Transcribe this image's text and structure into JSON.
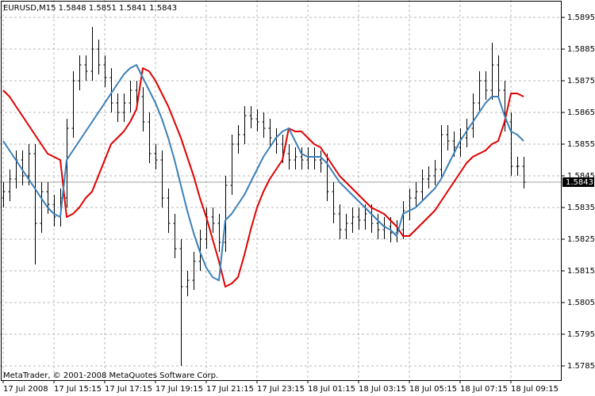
{
  "chart_data": {
    "type": "ohlc",
    "title": "EURUSD,M15  1.5848 1.5851 1.5841 1.5843",
    "annotation": "MetaTrader, © 2001-2008 MetaQuotes Software Corp.",
    "current_price": 1.5843,
    "bar_color": "#000000",
    "grid": true,
    "ylim": [
      1.57805,
      1.59005
    ],
    "yticks": [
      1.5785,
      1.5795,
      1.5805,
      1.5815,
      1.5825,
      1.5835,
      1.5845,
      1.5855,
      1.5865,
      1.5875,
      1.5885,
      1.5895
    ],
    "categories": [
      "17 Jul 2008",
      null,
      null,
      null,
      null,
      null,
      null,
      null,
      "17 Jul 15:15",
      null,
      null,
      null,
      null,
      null,
      null,
      null,
      "17 Jul 17:15",
      null,
      null,
      null,
      null,
      null,
      null,
      null,
      "17 Jul 19:15",
      null,
      null,
      null,
      null,
      null,
      null,
      null,
      "17 Jul 21:15",
      null,
      null,
      null,
      null,
      null,
      null,
      null,
      "17 Jul 23:15",
      null,
      null,
      null,
      null,
      null,
      null,
      null,
      "18 Jul 01:15",
      null,
      null,
      null,
      null,
      null,
      null,
      null,
      "18 Jul 03:15",
      null,
      null,
      null,
      null,
      null,
      null,
      null,
      "18 Jul 05:15",
      null,
      null,
      null,
      null,
      null,
      null,
      null,
      "18 Jul 07:15",
      null,
      null,
      null,
      null,
      null,
      null,
      null,
      "18 Jul 09:15",
      null,
      null
    ],
    "open": [
      1.5838,
      1.584,
      1.5844,
      1.585,
      1.5845,
      1.5852,
      1.583,
      1.584,
      1.5836,
      1.5832,
      1.5838,
      1.586,
      1.5875,
      1.588,
      1.5878,
      1.5885,
      1.588,
      1.5876,
      1.5868,
      1.5865,
      1.5868,
      1.5872,
      1.587,
      1.5862,
      1.5852,
      1.585,
      1.5838,
      1.583,
      1.5822,
      1.581,
      1.5812,
      1.5818,
      1.5825,
      1.5832,
      1.583,
      1.5824,
      1.5842,
      1.5855,
      1.5858,
      1.5864,
      1.5863,
      1.5862,
      1.586,
      1.5857,
      1.5855,
      1.5852,
      1.585,
      1.5851,
      1.585,
      1.5851,
      1.585,
      1.5849,
      1.584,
      1.5833,
      1.5828,
      1.583,
      1.5832,
      1.5831,
      1.5833,
      1.583,
      1.5828,
      1.5829,
      1.5827,
      1.5828,
      1.5834,
      1.5838,
      1.584,
      1.5844,
      1.5845,
      1.5847,
      1.5858,
      1.5856,
      1.5854,
      1.5857,
      1.586,
      1.5868,
      1.5875,
      1.5872,
      1.588,
      1.5872,
      1.5862,
      1.5848,
      1.5848
    ],
    "high": [
      1.5843,
      1.5847,
      1.5853,
      1.5853,
      1.5855,
      1.5855,
      1.5843,
      1.5843,
      1.5839,
      1.5841,
      1.5863,
      1.5878,
      1.5883,
      1.5883,
      1.5892,
      1.5888,
      1.5883,
      1.5879,
      1.5871,
      1.5871,
      1.5875,
      1.5875,
      1.5873,
      1.5865,
      1.5855,
      1.5853,
      1.5841,
      1.5833,
      1.5825,
      1.5815,
      1.5821,
      1.5828,
      1.5835,
      1.5835,
      1.5833,
      1.5845,
      1.5858,
      1.5861,
      1.5867,
      1.5867,
      1.5866,
      1.5865,
      1.5863,
      1.586,
      1.5858,
      1.5855,
      1.5854,
      1.5854,
      1.5854,
      1.5854,
      1.5853,
      1.5852,
      1.5843,
      1.5836,
      1.5833,
      1.5835,
      1.5835,
      1.5836,
      1.5836,
      1.5833,
      1.5832,
      1.5832,
      1.5831,
      1.5837,
      1.5841,
      1.5843,
      1.5847,
      1.5848,
      1.585,
      1.5861,
      1.5861,
      1.5859,
      1.586,
      1.5863,
      1.5871,
      1.5878,
      1.5878,
      1.5887,
      1.5883,
      1.5875,
      1.5865,
      1.5851,
      1.5851
    ],
    "low": [
      1.5835,
      1.5837,
      1.5841,
      1.5842,
      1.5842,
      1.5817,
      1.5827,
      1.5833,
      1.5829,
      1.5829,
      1.5835,
      1.5857,
      1.5872,
      1.5875,
      1.5875,
      1.5877,
      1.5873,
      1.5865,
      1.5862,
      1.5862,
      1.5865,
      1.5867,
      1.5859,
      1.5849,
      1.5847,
      1.5835,
      1.5827,
      1.5819,
      1.5785,
      1.5807,
      1.5809,
      1.5815,
      1.5822,
      1.5827,
      1.5821,
      1.5821,
      1.5839,
      1.5852,
      1.5855,
      1.586,
      1.5859,
      1.5857,
      1.5854,
      1.5852,
      1.5849,
      1.5847,
      1.5847,
      1.5847,
      1.5847,
      1.5847,
      1.5846,
      1.5837,
      1.583,
      1.5825,
      1.5825,
      1.5827,
      1.5828,
      1.5828,
      1.5827,
      1.5825,
      1.5825,
      1.5824,
      1.5824,
      1.5825,
      1.5831,
      1.5835,
      1.5837,
      1.5841,
      1.5842,
      1.5844,
      1.5853,
      1.5851,
      1.5851,
      1.5854,
      1.5857,
      1.5865,
      1.5869,
      1.5869,
      1.5869,
      1.5859,
      1.5845,
      1.5845,
      1.5841
    ],
    "close": [
      1.584,
      1.5844,
      1.585,
      1.5845,
      1.5852,
      1.583,
      1.584,
      1.5836,
      1.5832,
      1.5838,
      1.586,
      1.5875,
      1.588,
      1.5878,
      1.5885,
      1.588,
      1.5876,
      1.5868,
      1.5865,
      1.5868,
      1.5872,
      1.587,
      1.5862,
      1.5852,
      1.585,
      1.5838,
      1.583,
      1.5822,
      1.581,
      1.5812,
      1.5818,
      1.5825,
      1.5832,
      1.583,
      1.5824,
      1.5842,
      1.5855,
      1.5858,
      1.5864,
      1.5863,
      1.5862,
      1.586,
      1.5857,
      1.5855,
      1.5852,
      1.585,
      1.5851,
      1.585,
      1.5851,
      1.585,
      1.5849,
      1.584,
      1.5833,
      1.5828,
      1.583,
      1.5832,
      1.5831,
      1.5833,
      1.583,
      1.5828,
      1.5829,
      1.5827,
      1.5828,
      1.5834,
      1.5838,
      1.584,
      1.5844,
      1.5845,
      1.5847,
      1.5858,
      1.5856,
      1.5854,
      1.5857,
      1.586,
      1.5868,
      1.5875,
      1.5872,
      1.588,
      1.5872,
      1.5862,
      1.5848,
      1.5848,
      1.5843
    ],
    "series": [
      {
        "color": "#e00000",
        "values": [
          1.5872,
          1.587,
          1.5867,
          1.5864,
          1.5861,
          1.5858,
          1.5855,
          1.5852,
          1.5851,
          1.585,
          1.5832,
          1.5833,
          1.5835,
          1.5838,
          1.584,
          1.5845,
          1.585,
          1.5855,
          1.5857,
          1.5859,
          1.5862,
          1.5866,
          1.5879,
          1.5878,
          1.5875,
          1.5871,
          1.5867,
          1.5862,
          1.5857,
          1.5851,
          1.5845,
          1.5838,
          1.5832,
          1.5825,
          1.5818,
          1.581,
          1.5811,
          1.5813,
          1.582,
          1.5828,
          1.5835,
          1.584,
          1.5844,
          1.5847,
          1.585,
          1.586,
          1.5859,
          1.5859,
          1.5857,
          1.5855,
          1.5854,
          1.5851,
          1.5848,
          1.5845,
          1.5843,
          1.5841,
          1.5839,
          1.5837,
          1.5835,
          1.5834,
          1.5833,
          1.5831,
          1.5829,
          1.5826,
          1.5826,
          1.5828,
          1.583,
          1.5832,
          1.5834,
          1.5837,
          1.584,
          1.5843,
          1.5846,
          1.5849,
          1.5851,
          1.5852,
          1.5853,
          1.5855,
          1.5856,
          1.5862,
          1.5871,
          1.5871,
          1.587
        ]
      },
      {
        "color": "#3c80b8",
        "values": [
          1.5856,
          1.5853,
          1.585,
          1.5847,
          1.5844,
          1.5841,
          1.5838,
          1.5835,
          1.5833,
          1.5832,
          1.585,
          1.5853,
          1.5856,
          1.5859,
          1.5862,
          1.5865,
          1.5868,
          1.5871,
          1.5874,
          1.5877,
          1.5879,
          1.588,
          1.5876,
          1.5872,
          1.5868,
          1.5863,
          1.5857,
          1.585,
          1.5842,
          1.5834,
          1.5827,
          1.5821,
          1.5816,
          1.5813,
          1.5812,
          1.5831,
          1.5833,
          1.5836,
          1.5839,
          1.5843,
          1.5847,
          1.5851,
          1.5854,
          1.5857,
          1.5859,
          1.586,
          1.5856,
          1.5852,
          1.5851,
          1.5851,
          1.5851,
          1.5849,
          1.5846,
          1.5843,
          1.5841,
          1.5839,
          1.5837,
          1.5835,
          1.5833,
          1.5831,
          1.5829,
          1.5828,
          1.5826,
          1.5833,
          1.5834,
          1.5835,
          1.5837,
          1.5839,
          1.5841,
          1.5844,
          1.5848,
          1.5852,
          1.5856,
          1.5859,
          1.5862,
          1.5865,
          1.5868,
          1.587,
          1.587,
          1.5864,
          1.5859,
          1.5858,
          1.5856
        ]
      }
    ]
  }
}
